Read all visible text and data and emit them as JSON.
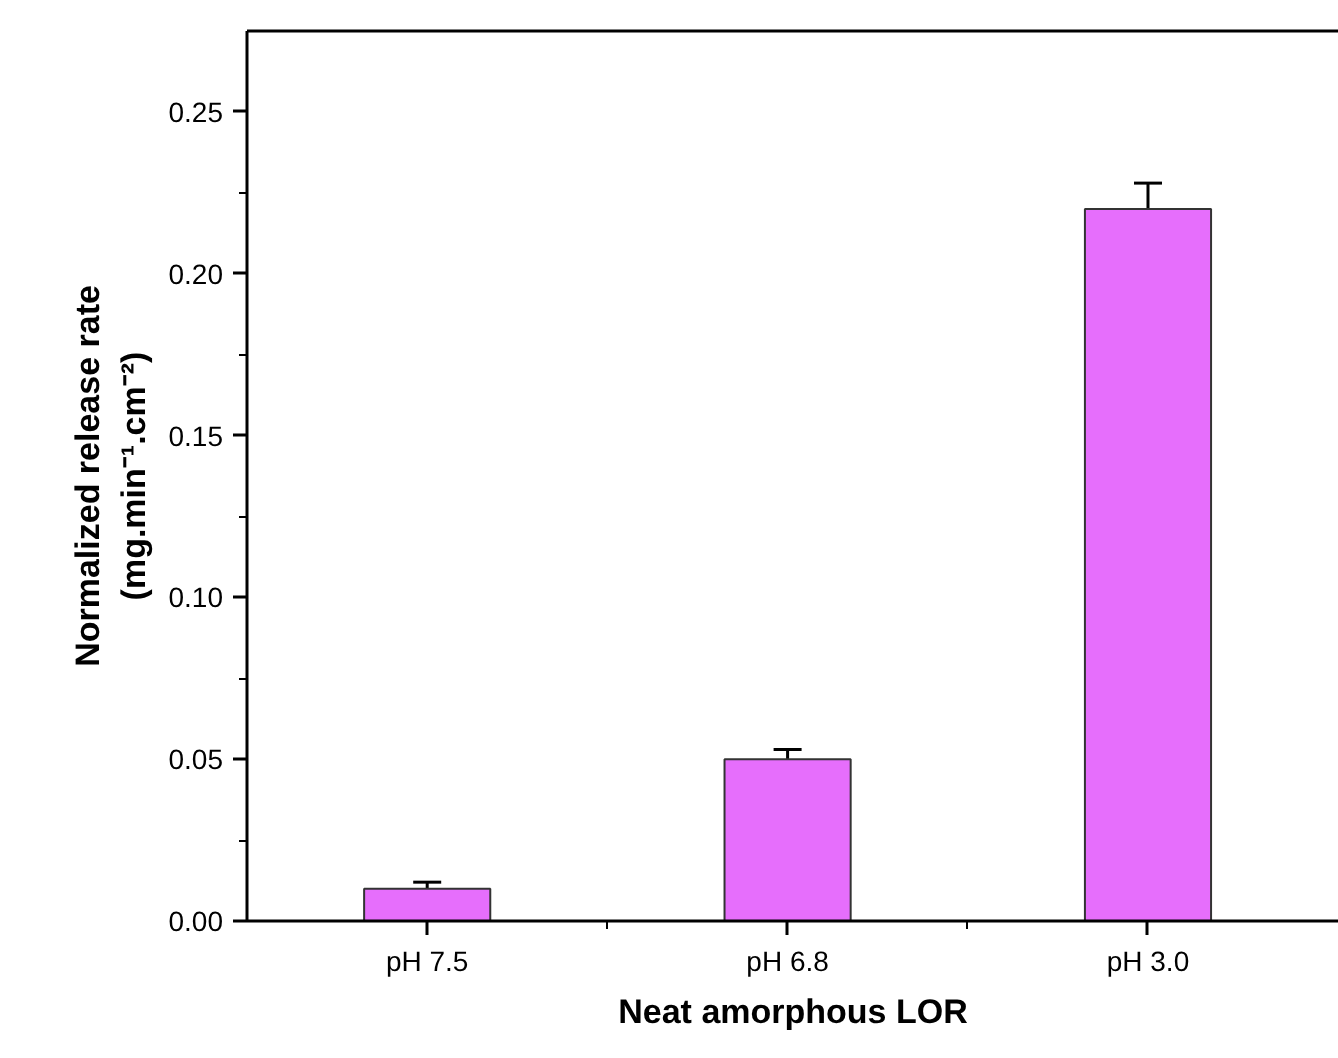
{
  "chart_data": {
    "type": "bar",
    "xlabel": "Neat amorphous LOR",
    "ylabel": "Normalized release rate\n(mg.min⁻¹.cm⁻²)",
    "categories": [
      "pH 7.5",
      "pH 6.8",
      "pH 3.0"
    ],
    "values": [
      0.01,
      0.05,
      0.22
    ],
    "color": "#e66efc",
    "errors": [
      [
        0.01,
        0.012
      ],
      [
        0.05,
        0.053
      ],
      [
        0.22,
        0.228
      ]
    ],
    "ylim": [
      0,
      0.275
    ],
    "yticks": [
      {
        "value": 0,
        "label": "0.00"
      },
      0.05,
      {
        "value": 0.1,
        "label": "0.10"
      },
      0.15,
      {
        "value": 0.2,
        "label": "0.20"
      },
      0.25
    ],
    "grid": false
  }
}
